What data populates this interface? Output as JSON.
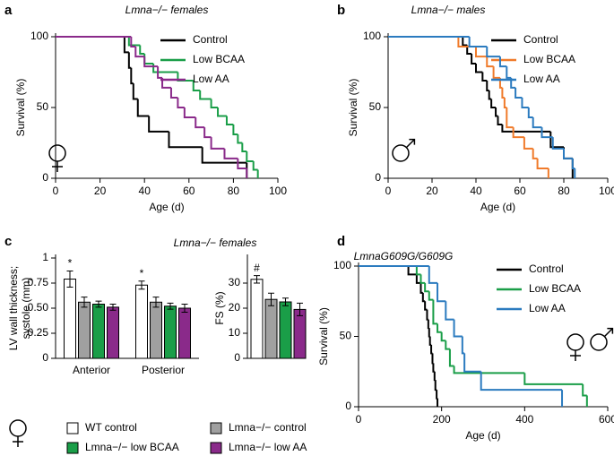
{
  "chart_data": [
    {
      "panel": "a",
      "type": "survival",
      "title": "Lmna−/− females",
      "xlabel": "Age (d)",
      "ylabel": "Survival (%)",
      "xlim": [
        0,
        100
      ],
      "xticks": [
        0,
        20,
        40,
        60,
        80,
        100
      ],
      "ylim": [
        0,
        100
      ],
      "yticks": [
        0,
        50,
        100
      ],
      "legend": "upper right",
      "symbol": "female",
      "series": [
        {
          "name": "Control",
          "color": "#000000",
          "x": [
            0,
            31,
            33,
            34,
            35,
            37,
            42,
            51,
            66,
            86
          ],
          "values": [
            100,
            89,
            78,
            67,
            56,
            44,
            33,
            22,
            11,
            0
          ]
        },
        {
          "name": "Low BCAA",
          "color": "#1a9e48",
          "x": [
            0,
            33,
            38,
            40,
            44,
            55,
            62,
            65,
            70,
            73,
            77,
            80,
            82,
            84,
            86,
            89,
            91
          ],
          "values": [
            100,
            94,
            88,
            81,
            75,
            69,
            62,
            56,
            50,
            44,
            38,
            31,
            25,
            19,
            12,
            6,
            0
          ]
        },
        {
          "name": "Low AA",
          "color": "#8a2a8a",
          "x": [
            0,
            34,
            36,
            40,
            46,
            48,
            52,
            55,
            58,
            63,
            67,
            70,
            76,
            82,
            86
          ],
          "values": [
            100,
            93,
            86,
            79,
            71,
            64,
            57,
            50,
            43,
            36,
            29,
            21,
            14,
            7,
            0
          ]
        }
      ]
    },
    {
      "panel": "b",
      "type": "survival",
      "title": "Lmna−/− males",
      "xlabel": "Age (d)",
      "ylabel": "Survival (%)",
      "xlim": [
        0,
        100
      ],
      "xticks": [
        0,
        20,
        40,
        60,
        80,
        100
      ],
      "ylim": [
        0,
        100
      ],
      "yticks": [
        0,
        50,
        100
      ],
      "legend": "upper right",
      "symbol": "male",
      "series": [
        {
          "name": "Control",
          "color": "#000000",
          "x": [
            0,
            34,
            36,
            38,
            40,
            43,
            45,
            46,
            47,
            49,
            50,
            52,
            74,
            80,
            84
          ],
          "values": [
            100,
            94,
            88,
            81,
            75,
            69,
            62,
            56,
            50,
            44,
            38,
            33,
            22,
            14,
            0
          ]
        },
        {
          "name": "Low BCAA",
          "color": "#f07b2b",
          "x": [
            0,
            32,
            40,
            45,
            48,
            51,
            52,
            53,
            54,
            57,
            62,
            66,
            68,
            73
          ],
          "values": [
            100,
            93,
            86,
            79,
            71,
            64,
            57,
            50,
            36,
            29,
            21,
            14,
            7,
            0
          ]
        },
        {
          "name": "Low AA",
          "color": "#2b7bbf",
          "x": [
            0,
            37,
            45,
            51,
            54,
            56,
            58,
            61,
            64,
            66,
            70,
            75,
            80,
            84,
            85
          ],
          "values": [
            100,
            93,
            86,
            79,
            71,
            64,
            57,
            50,
            43,
            36,
            29,
            21,
            14,
            7,
            0
          ]
        }
      ]
    },
    {
      "panel": "c",
      "type": "grouped_bar",
      "title": "Lmna−/− females",
      "ylabel": [
        "LV wall thickness;",
        "systole (mm)"
      ],
      "categories": [
        "Anterior",
        "Posterior"
      ],
      "ylim": [
        0,
        1
      ],
      "yticks": [
        0,
        0.25,
        {
          "value": 0.5,
          "label": "0.50"
        },
        0.75,
        1
      ],
      "symbol": "female",
      "series": [
        {
          "name": "WT control",
          "color": "#ffffff",
          "values": [
            0.79,
            0.73
          ],
          "errors": [
            0.08,
            0.04
          ],
          "value_annotations": [
            "*",
            "*"
          ]
        },
        {
          "name": "Lmna−/− control",
          "color": "#a0a0a0",
          "values": [
            0.56,
            0.56
          ],
          "errors": [
            0.05,
            0.05
          ]
        },
        {
          "name": "Lmna−/− low BCAA",
          "color": "#1a9e48",
          "values": [
            0.54,
            0.52
          ],
          "errors": [
            0.03,
            0.03
          ]
        },
        {
          "name": "Lmna−/− low AA",
          "color": "#8a2a8a",
          "values": [
            0.51,
            0.5
          ],
          "errors": [
            0.03,
            0.04
          ]
        }
      ]
    },
    {
      "type": "bar",
      "ylabel": "FS (%)",
      "ylim": [
        0,
        40
      ],
      "yticks": [
        0,
        10,
        20,
        30
      ],
      "values": [
        31.5,
        23.5,
        22.5,
        19.5
      ],
      "errors": [
        1.5,
        2.5,
        1.5,
        2.5
      ],
      "colors": [
        "#ffffff",
        "#a0a0a0",
        "#1a9e48",
        "#8a2a8a"
      ],
      "value_annotations": [
        "#",
        null,
        null,
        null
      ]
    },
    {
      "panel": "d",
      "type": "survival",
      "title": "LmnaG609G/G609G",
      "xlabel": "Age (d)",
      "ylabel": "Survival (%)",
      "xlim": [
        0,
        600
      ],
      "xticks": [
        0,
        200,
        400,
        600
      ],
      "ylim": [
        0,
        100
      ],
      "yticks": [
        0,
        50,
        100
      ],
      "legend": "upper right",
      "symbol": "female male",
      "series": [
        {
          "name": "Control",
          "color": "#000000",
          "x": [
            0,
            120,
            140,
            150,
            155,
            160,
            165,
            168,
            170,
            172,
            175,
            178,
            180,
            183,
            185,
            188,
            190
          ],
          "values": [
            100,
            94,
            88,
            81,
            75,
            69,
            62,
            56,
            50,
            44,
            38,
            31,
            25,
            19,
            12,
            6,
            0
          ]
        },
        {
          "name": "Low BCAA",
          "color": "#1a9e48",
          "x": [
            0,
            140,
            150,
            160,
            170,
            180,
            190,
            200,
            210,
            220,
            230,
            400,
            540,
            550
          ],
          "values": [
            100,
            94,
            88,
            82,
            76,
            59,
            53,
            47,
            41,
            29,
            24,
            16,
            8,
            0
          ]
        },
        {
          "name": "Low AA",
          "color": "#2b7bbf",
          "x": [
            0,
            170,
            190,
            210,
            230,
            250,
            255,
            295,
            490
          ],
          "values": [
            100,
            88,
            75,
            62,
            50,
            38,
            25,
            12,
            0
          ]
        }
      ]
    }
  ]
}
